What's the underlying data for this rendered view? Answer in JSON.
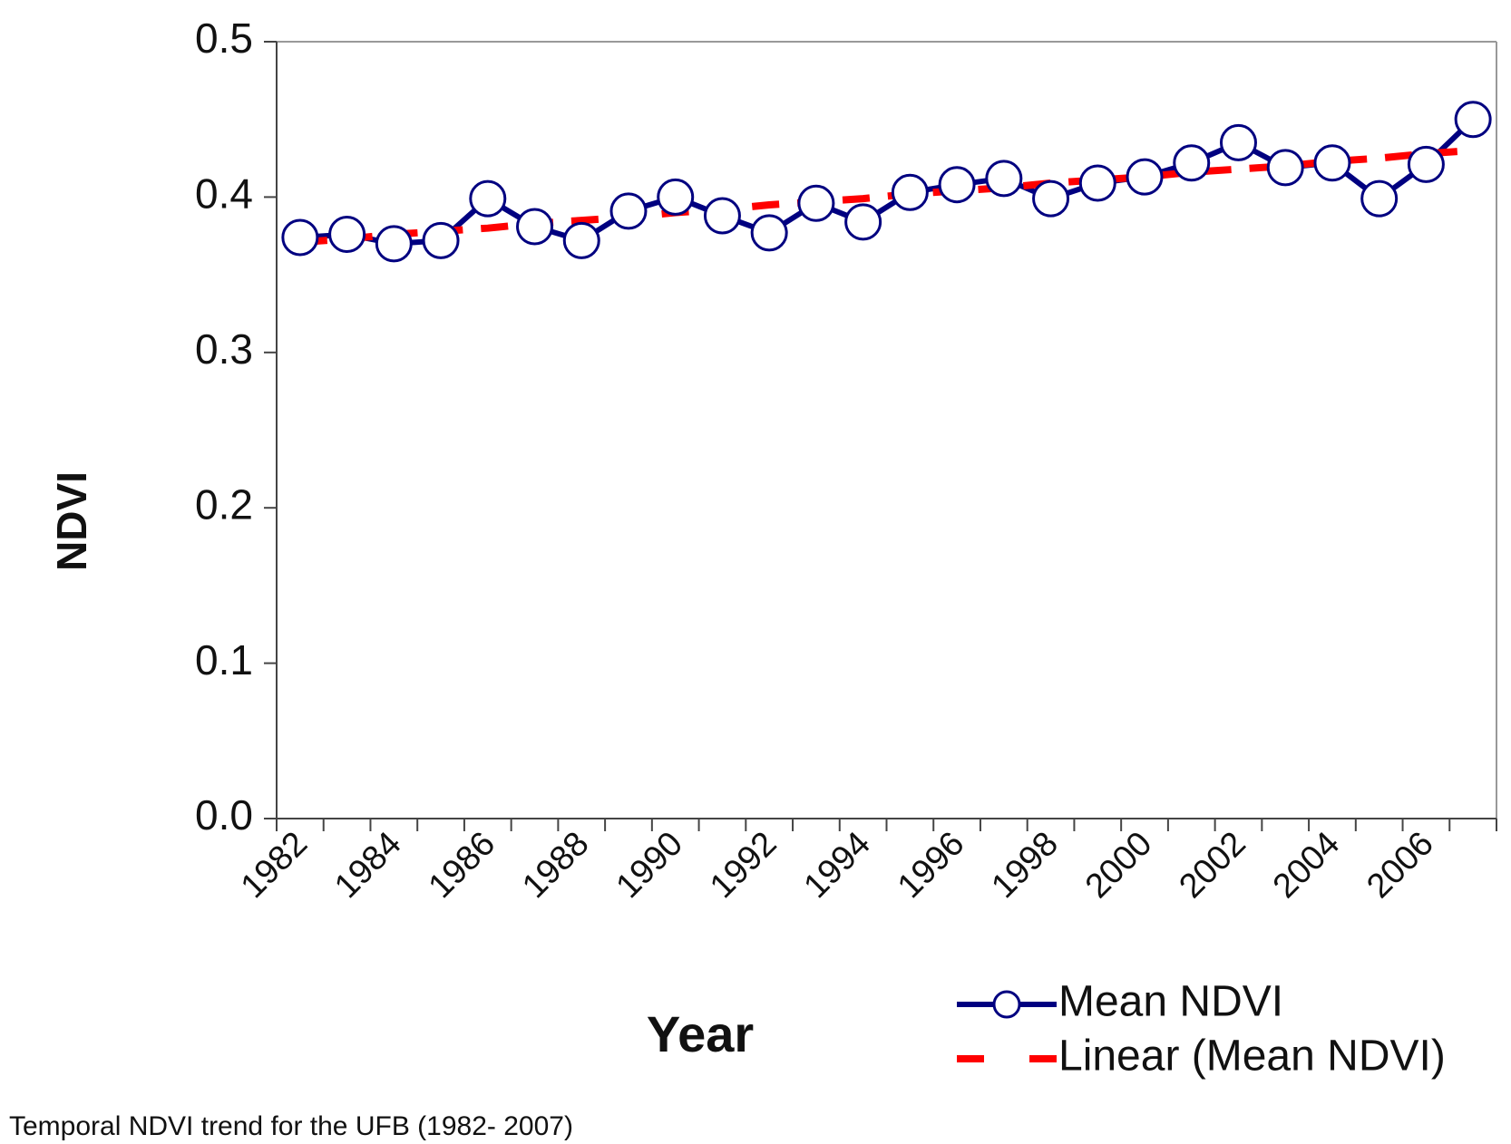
{
  "chart_data": {
    "type": "line",
    "x_label": "Year",
    "y_label": "NDVI",
    "caption": "Temporal NDVI trend for the UFB (1982- 2007)",
    "categories": [
      "1982",
      null,
      "1984",
      null,
      "1986",
      null,
      "1988",
      null,
      "1990",
      null,
      "1992",
      null,
      "1994",
      null,
      "1996",
      null,
      "1998",
      null,
      "2000",
      null,
      "2002",
      null,
      "2004",
      null,
      "2006",
      null
    ],
    "series": [
      {
        "name": "Mean NDVI",
        "color": "#000080",
        "marker": "circle",
        "values": [
          0.374,
          0.376,
          0.37,
          0.372,
          0.399,
          0.381,
          0.372,
          0.391,
          0.4,
          0.388,
          0.377,
          0.396,
          0.384,
          0.403,
          0.408,
          0.412,
          0.399,
          0.409,
          0.413,
          0.422,
          0.435,
          0.419,
          0.422,
          0.399,
          0.421,
          0.45
        ]
      },
      {
        "name": "Linear (Mean NDVI)",
        "color": "#ff0000",
        "dashed": true,
        "values": [
          0.371,
          0.373,
          0.376,
          0.378,
          0.38,
          0.383,
          0.385,
          0.387,
          0.39,
          0.392,
          0.395,
          0.397,
          0.399,
          0.402,
          0.404,
          0.406,
          0.409,
          0.411,
          0.413,
          0.416,
          0.418,
          0.42,
          0.423,
          0.425,
          0.428,
          0.43
        ]
      }
    ],
    "ylim": [
      0,
      0.5
    ],
    "yticks": [
      {
        "value": 0,
        "label": "0.0"
      },
      0.1,
      0.2,
      0.3,
      0.4,
      0.5
    ],
    "grid": false
  }
}
